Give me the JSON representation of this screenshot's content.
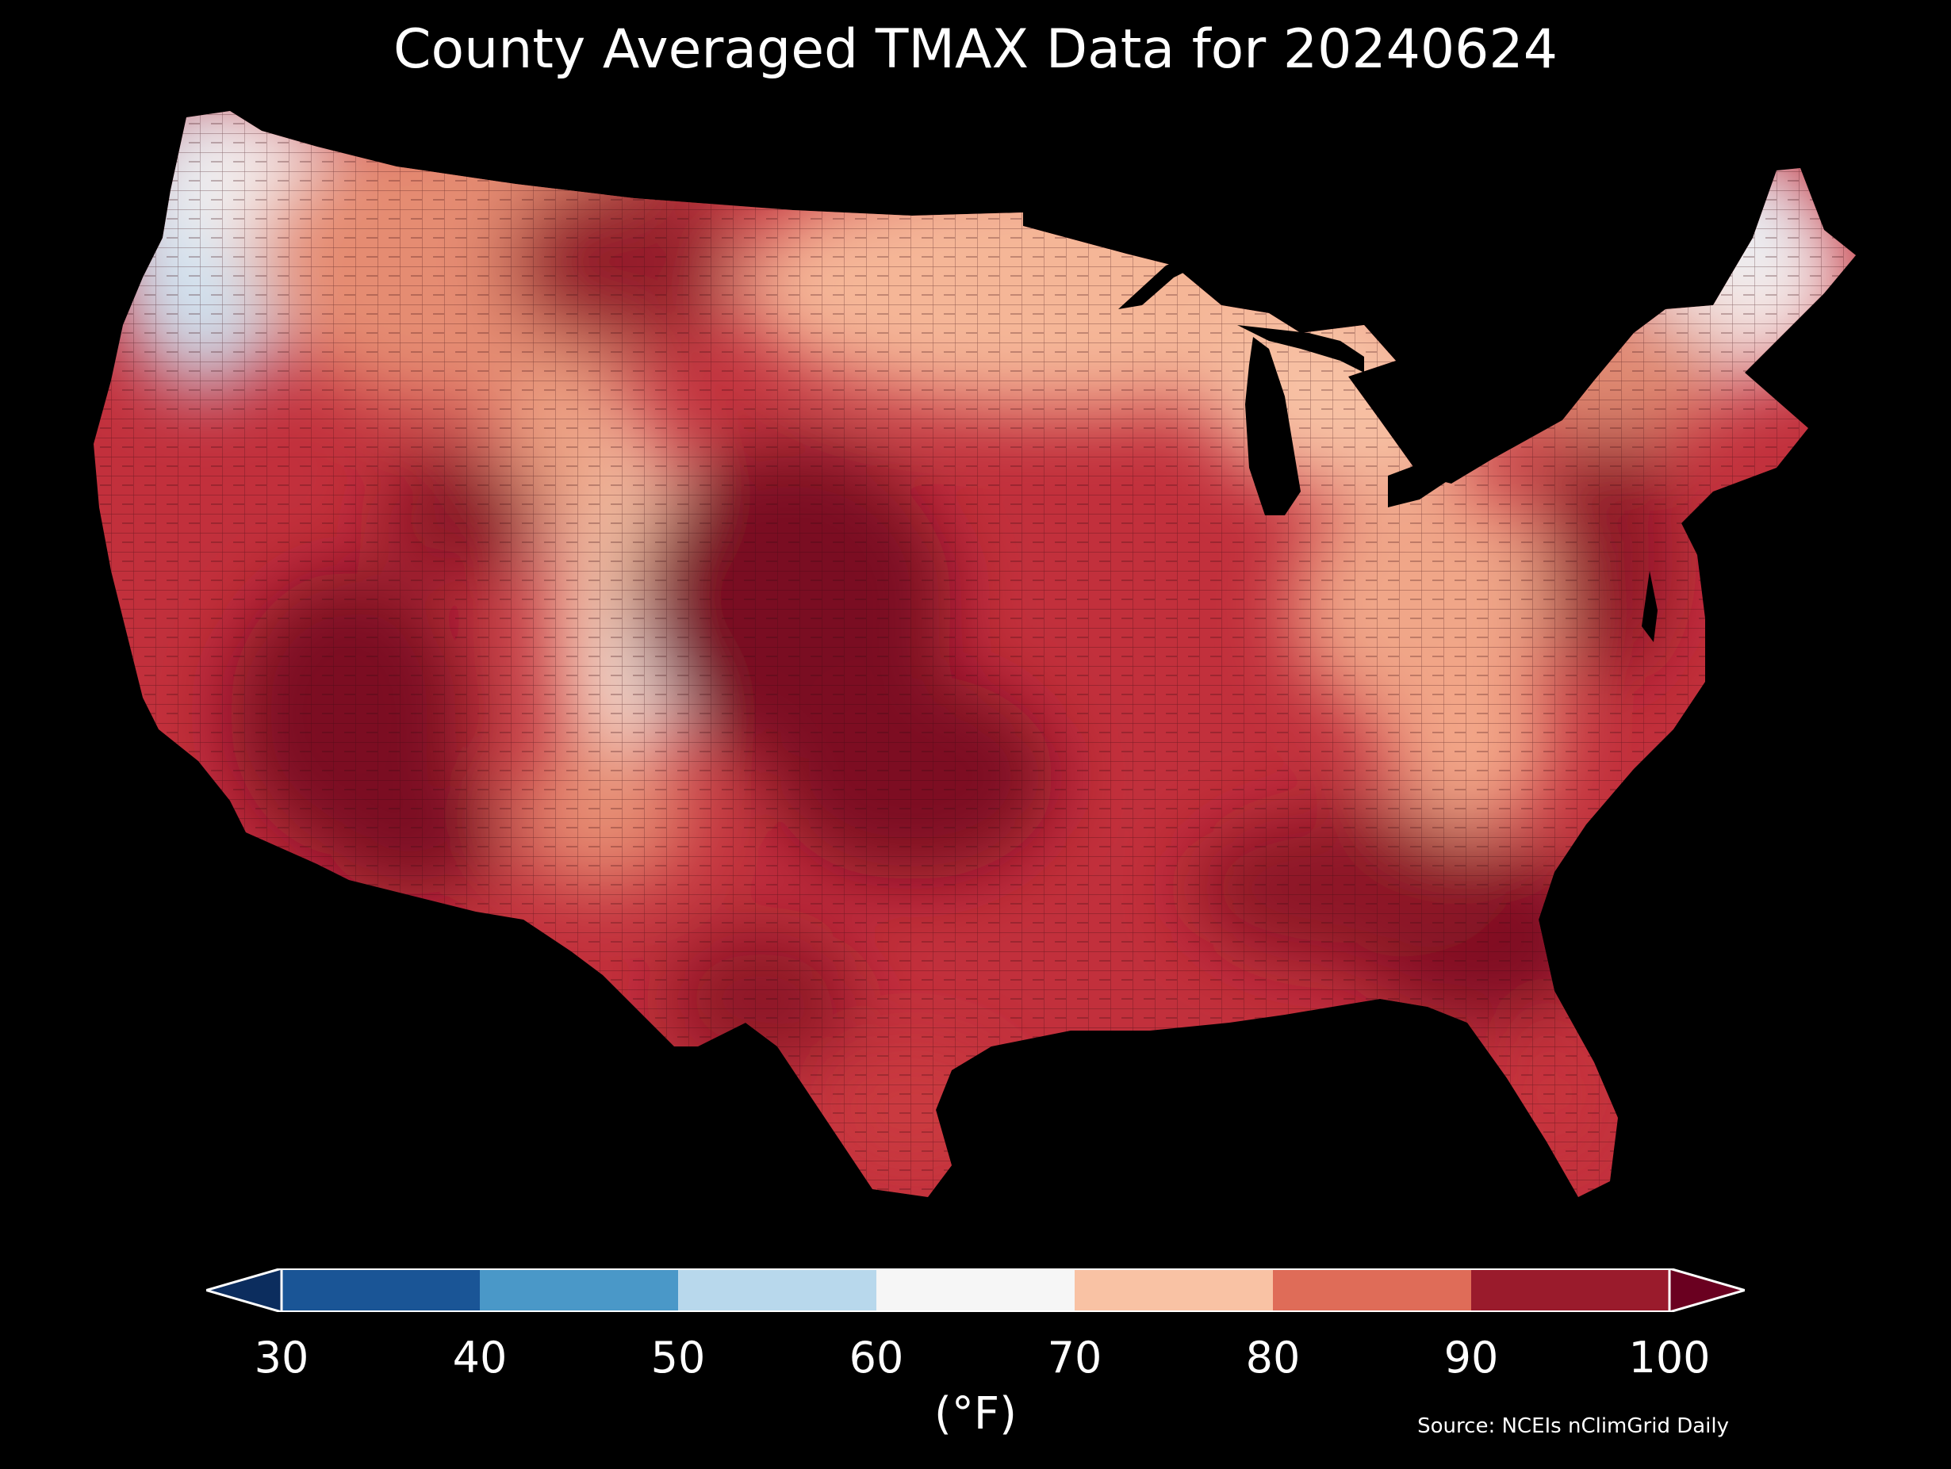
{
  "title": "County Averaged TMAX Data for 20240624",
  "colorbar": {
    "ticks": [
      "30",
      "40",
      "50",
      "60",
      "70",
      "80",
      "90",
      "100"
    ],
    "unit_label": "(°F)",
    "bins": [
      {
        "from": 30,
        "to": 40,
        "color": "#1a5596"
      },
      {
        "from": 40,
        "to": 50,
        "color": "#4a98c8"
      },
      {
        "from": 50,
        "to": 60,
        "color": "#b8d8ec"
      },
      {
        "from": 60,
        "to": 70,
        "color": "#f6f6f6"
      },
      {
        "from": 70,
        "to": 80,
        "color": "#f9c2a4"
      },
      {
        "from": 80,
        "to": 90,
        "color": "#df6c58"
      },
      {
        "from": 90,
        "to": 100,
        "color": "#9a1b2c"
      }
    ],
    "under_color": "#0c2d5e",
    "over_color": "#6a0020"
  },
  "source": "Source: NCEIs nClimGrid Daily"
}
